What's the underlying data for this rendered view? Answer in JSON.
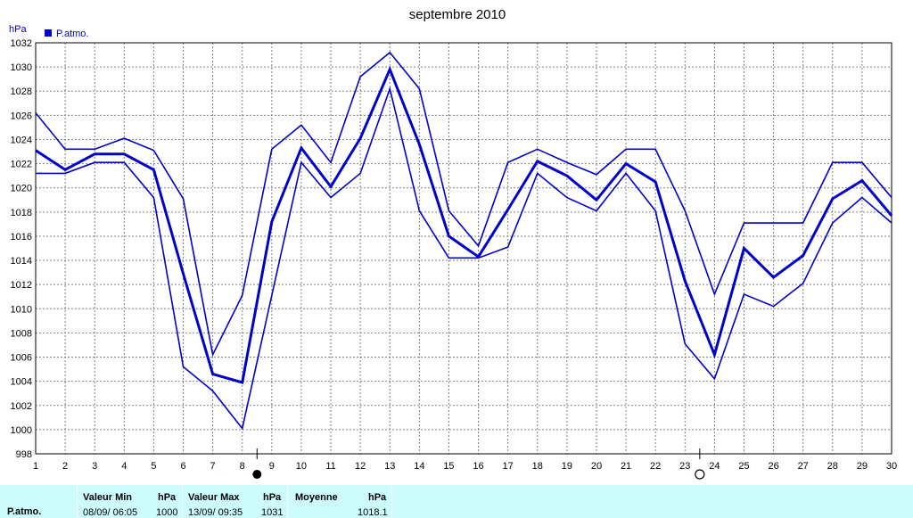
{
  "colors": {
    "line": "#0000cc",
    "grid": "#808080",
    "footer_bg": "#ccfcfc"
  },
  "chart_data": {
    "type": "line",
    "title": "septembre 2010",
    "ylabel": "hPa",
    "ylim": [
      998,
      1032
    ],
    "yticks": [
      998,
      1000,
      1002,
      1004,
      1006,
      1008,
      1010,
      1012,
      1014,
      1016,
      1018,
      1020,
      1022,
      1024,
      1026,
      1028,
      1030,
      1032
    ],
    "x": [
      1,
      2,
      3,
      4,
      5,
      6,
      7,
      8,
      9,
      10,
      11,
      12,
      13,
      14,
      15,
      16,
      17,
      18,
      19,
      20,
      21,
      22,
      23,
      24,
      25,
      26,
      27,
      28,
      29,
      30
    ],
    "grid": true,
    "legend": {
      "position": "top-left",
      "entries": [
        "P.atmo."
      ]
    },
    "series": [
      {
        "role": "max",
        "values": [
          1026.2,
          1023.2,
          1023.2,
          1024.1,
          1023.1,
          1019.1,
          1006.2,
          1011.1,
          1023.2,
          1025.2,
          1022.1,
          1029.2,
          1031.2,
          1028.2,
          1018.1,
          1015.2,
          1022.1,
          1023.2,
          1022.1,
          1021.1,
          1023.2,
          1023.2,
          1018.1,
          1011.2,
          1017.1,
          1017.1,
          1017.1,
          1022.1,
          1022.1,
          1019.2
        ]
      },
      {
        "role": "mean",
        "values": [
          1023.1,
          1021.5,
          1022.8,
          1022.8,
          1021.5,
          1012.9,
          1004.6,
          1003.9,
          1017.2,
          1023.3,
          1020.1,
          1024.1,
          1029.8,
          1023.6,
          1016.0,
          1014.3,
          1018.2,
          1022.2,
          1021.0,
          1019.0,
          1022.0,
          1020.5,
          1012.3,
          1006.2,
          1015.0,
          1012.6,
          1014.4,
          1019.1,
          1020.6,
          1017.7
        ]
      },
      {
        "role": "min",
        "values": [
          1021.2,
          1021.2,
          1022.1,
          1022.1,
          1019.2,
          1005.2,
          1003.2,
          1000.1,
          1011.1,
          1022.1,
          1019.2,
          1021.2,
          1028.2,
          1018.1,
          1014.2,
          1014.2,
          1015.1,
          1021.2,
          1019.2,
          1018.1,
          1021.2,
          1018.1,
          1007.1,
          1004.2,
          1011.2,
          1010.2,
          1012.1,
          1017.1,
          1019.2,
          1017.1
        ]
      }
    ],
    "markers": [
      {
        "day": 8.5,
        "symbol": "new-moon"
      },
      {
        "day": 23.5,
        "symbol": "full-moon"
      }
    ]
  },
  "footer": {
    "row_label": "P.atmo.",
    "min": {
      "header": "Valeur Min",
      "unit": "hPa",
      "date": "08/09/  06:05",
      "value": "1000"
    },
    "max": {
      "header": "Valeur Max",
      "unit": "hPa",
      "date": "13/09/  09:35",
      "value": "1031"
    },
    "mean": {
      "header": "Moyenne",
      "unit": "hPa",
      "value": "1018.1"
    }
  }
}
